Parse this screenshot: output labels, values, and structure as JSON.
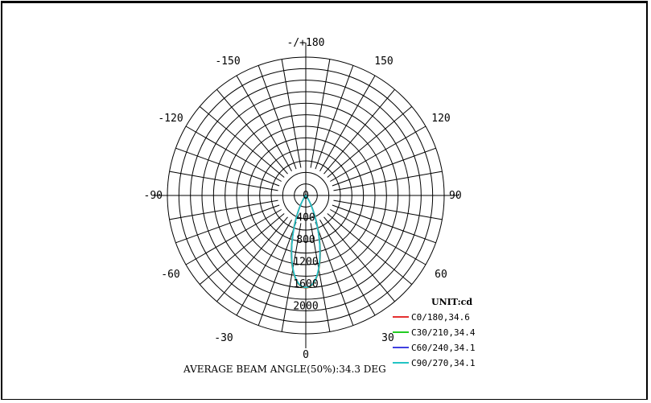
{
  "chart_data": {
    "type": "polar",
    "unit_label": "UNIT:cd",
    "beam_angle_text": "AVERAGE BEAM ANGLE(50%):34.3 DEG",
    "angle_labels": [
      {
        "angle": 180,
        "text": "-/+180"
      },
      {
        "angle": 150,
        "text": "150"
      },
      {
        "angle": 120,
        "text": "120"
      },
      {
        "angle": 90,
        "text": "90"
      },
      {
        "angle": 60,
        "text": "60"
      },
      {
        "angle": 30,
        "text": "30"
      },
      {
        "angle": 0,
        "text": "0"
      },
      {
        "angle": -30,
        "text": "-30"
      },
      {
        "angle": -60,
        "text": "-60"
      },
      {
        "angle": -90,
        "text": "-90"
      },
      {
        "angle": -120,
        "text": "-120"
      },
      {
        "angle": -150,
        "text": "-150"
      }
    ],
    "radial_ticks": [
      0,
      400,
      800,
      1200,
      1600,
      2000
    ],
    "r_max": 2500,
    "grid_rings": 12,
    "grid_spokes_deg": 10,
    "series": [
      {
        "name": "C0/180,34.6",
        "color": "#e53030",
        "peak": 1670,
        "beam_half_deg": 17.3
      },
      {
        "name": "C30/210,34.4",
        "color": "#22cc22",
        "peak": 1665,
        "beam_half_deg": 17.2
      },
      {
        "name": "C60/240,34.1",
        "color": "#4040e0",
        "peak": 1660,
        "beam_half_deg": 17.05
      },
      {
        "name": "C90/270,34.1",
        "color": "#22c4c4",
        "peak": 1660,
        "beam_half_deg": 17.05
      }
    ]
  }
}
